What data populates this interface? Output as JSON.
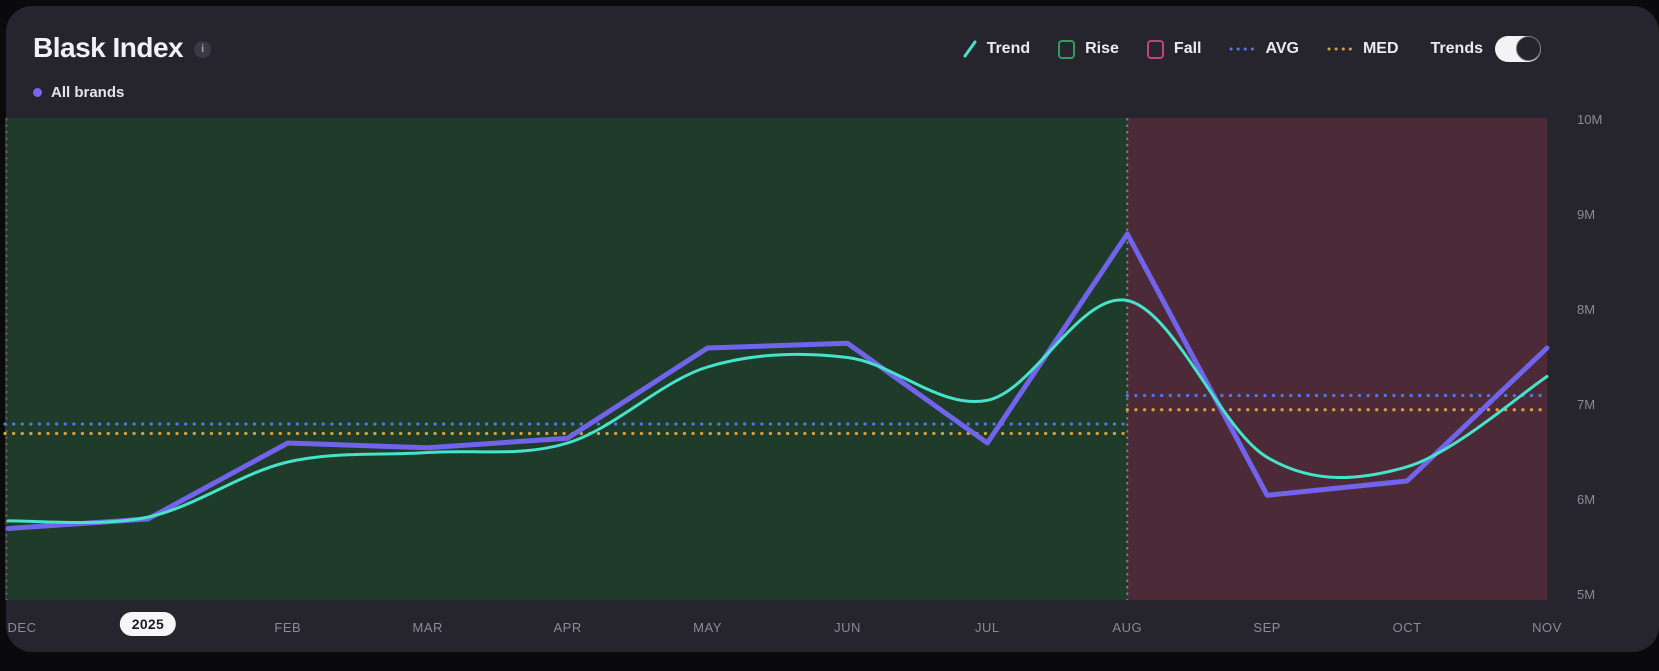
{
  "header": {
    "title": "Blask Index",
    "info_icon": "i",
    "series_label": "All brands",
    "series_dot_color": "#7668ee"
  },
  "legend": {
    "items": [
      {
        "label": "Trend",
        "icon": "slash",
        "color": "#46e2c9"
      },
      {
        "label": "Rise",
        "icon": "square",
        "color": "#2f9e5f"
      },
      {
        "label": "Fall",
        "icon": "square",
        "color": "#c2417f"
      },
      {
        "label": "AVG",
        "icon": "dots",
        "color": "#4b7ae0"
      },
      {
        "label": "MED",
        "icon": "dots",
        "color": "#d6a03c"
      }
    ],
    "trends_toggle": {
      "label": "Trends",
      "on": true
    }
  },
  "chart_data": {
    "type": "line",
    "title": "Blask Index",
    "categories": [
      "DEC",
      "2025",
      "FEB",
      "MAR",
      "APR",
      "MAY",
      "JUN",
      "JUL",
      "AUG",
      "SEP",
      "OCT",
      "NOV"
    ],
    "pill_index": 1,
    "series": [
      {
        "name": "All brands",
        "color": "#7163eb",
        "style": "straight",
        "width": 5,
        "values": [
          5.7,
          5.8,
          6.6,
          6.55,
          6.65,
          7.6,
          7.65,
          6.6,
          8.8,
          6.05,
          6.2,
          7.6
        ]
      },
      {
        "name": "Trend",
        "color": "#46e2c9",
        "style": "smooth",
        "width": 3,
        "values": [
          5.78,
          5.82,
          6.4,
          6.5,
          6.6,
          7.4,
          7.5,
          7.05,
          8.1,
          6.45,
          6.35,
          7.3
        ]
      }
    ],
    "reference_lines": {
      "avg": {
        "label": "AVG",
        "color": "#4b7ae0",
        "past": 6.8,
        "forecast": 7.1
      },
      "med": {
        "label": "MED",
        "color": "#d6a03c",
        "past": 6.7,
        "forecast": 6.95
      }
    },
    "regions": [
      {
        "name": "Rise",
        "from": 0,
        "to": 8,
        "color": "#1f3b29"
      },
      {
        "name": "Fall",
        "from": 8,
        "to": 11,
        "color": "#4d2a38"
      }
    ],
    "boundary_index": 8,
    "ylim": [
      5,
      10
    ],
    "yticks": [
      {
        "text": "10M",
        "value": 10
      },
      {
        "text": "9M",
        "value": 9
      },
      {
        "text": "8M",
        "value": 8
      },
      {
        "text": "7M",
        "value": 7
      },
      {
        "text": "6M",
        "value": 6
      },
      {
        "text": "5M",
        "value": 5
      }
    ],
    "grid": false,
    "legend_position": "top-right"
  }
}
